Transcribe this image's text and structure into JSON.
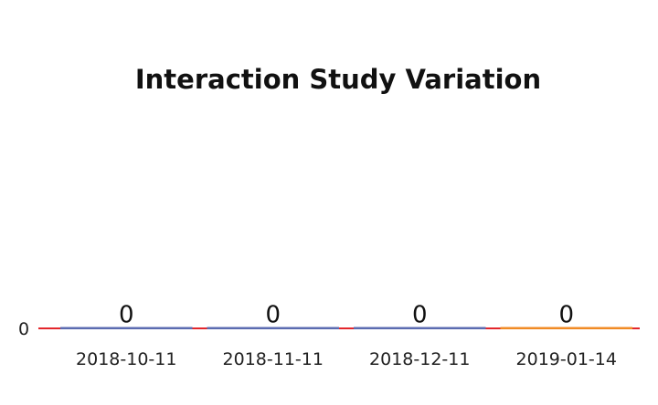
{
  "chart_data": {
    "type": "bar",
    "title": "Interaction Study Variation",
    "xlabel": "",
    "ylabel": "",
    "categories": [
      "2018-10-11",
      "2018-11-11",
      "2018-12-11",
      "2019-01-14"
    ],
    "values": [
      0,
      0,
      0,
      0
    ],
    "data_labels": [
      "0",
      "0",
      "0",
      "0"
    ],
    "y_ticks": [
      "0"
    ],
    "grid": false,
    "legend": "none",
    "colors": {
      "bars": [
        "#5b6bb0",
        "#5b6bb0",
        "#5b6bb0",
        "#f08a24"
      ],
      "baseline": "#e3262b"
    }
  }
}
